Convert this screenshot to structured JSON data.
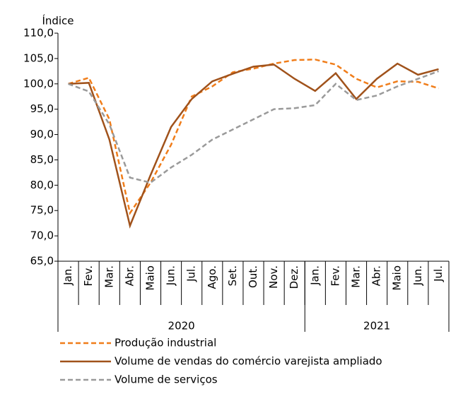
{
  "chart_data": {
    "type": "line",
    "y_label": "Índice",
    "categories": [
      "Jan.",
      "Fev.",
      "Mar.",
      "Abr.",
      "Maio",
      "Jun.",
      "Jul.",
      "Ago.",
      "Set.",
      "Out.",
      "Nov.",
      "Dez.",
      "Jan.",
      "Fev.",
      "Mar.",
      "Abr.",
      "Maio",
      "Jun.",
      "Jul."
    ],
    "groups": [
      {
        "name": "2020",
        "size": 12
      },
      {
        "name": "2021",
        "size": 7
      }
    ],
    "ylim": [
      65,
      110
    ],
    "yticks": [
      {
        "value": 65,
        "label": "65,0"
      },
      {
        "value": 70,
        "label": "70,0"
      },
      {
        "value": 75,
        "label": "75,0"
      },
      {
        "value": 80,
        "label": "80,0"
      },
      {
        "value": 85,
        "label": "85,0"
      },
      {
        "value": 90,
        "label": "90,0"
      },
      {
        "value": 95,
        "label": "95,0"
      },
      {
        "value": 100,
        "label": "100,0"
      },
      {
        "value": 105,
        "label": "105,0"
      },
      {
        "value": 110,
        "label": "110,0"
      }
    ],
    "series": [
      {
        "name": "Produção industrial",
        "color": "#f07d1a",
        "line_style": "dashed",
        "values": [
          100,
          101.2,
          93,
          74.5,
          80.5,
          88,
          97.5,
          99.5,
          102.3,
          103,
          104,
          104.7,
          104.8,
          103.8,
          101,
          99.3,
          100.5,
          100.4,
          99.1
        ]
      },
      {
        "name": "Volume de vendas do comércio varejista ampliado",
        "color": "#a0521b",
        "line_style": "solid",
        "values": [
          100,
          100.2,
          89,
          72,
          82,
          91.5,
          97,
          100.5,
          102,
          103.4,
          103.8,
          101,
          98.6,
          102.1,
          97,
          101,
          104,
          101.8,
          102.9
        ]
      },
      {
        "name": "Volume de serviços",
        "color": "#9a9a9a",
        "line_style": "dashed",
        "values": [
          100,
          98.5,
          92,
          81.5,
          80.5,
          83.5,
          86,
          89,
          91,
          93,
          95,
          95.2,
          95.8,
          100,
          96.8,
          97.7,
          99.5,
          101,
          102.5
        ]
      }
    ]
  }
}
